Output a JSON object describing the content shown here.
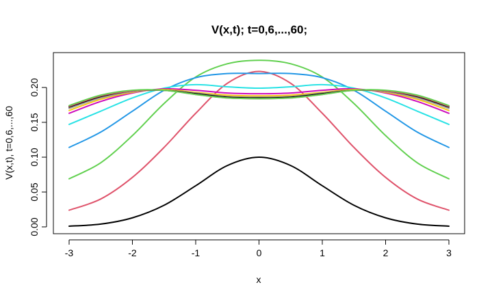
{
  "chart_data": {
    "type": "line",
    "title": "V(x,t); t=0,6,...,60;",
    "xlabel": "x",
    "ylabel": "V(x,t), t=0,6,...,60",
    "xlim": [
      -3,
      3
    ],
    "ylim": [
      0,
      0.24
    ],
    "xticks": [
      -3,
      -2,
      -1,
      0,
      1,
      2,
      3
    ],
    "xtick_labels": [
      "-3",
      "-2",
      "-1",
      "0",
      "1",
      "2",
      "3"
    ],
    "yticks": [
      0.0,
      0.05,
      0.1,
      0.15,
      0.2
    ],
    "ytick_labels": [
      "0.00",
      "0.05",
      "0.10",
      "0.15",
      "0.20"
    ],
    "grid": false,
    "legend": "none",
    "x": [
      -3.0,
      -2.5,
      -2.0,
      -1.5,
      -1.0,
      -0.5,
      0.0,
      0.5,
      1.0,
      1.5,
      2.0,
      2.5,
      3.0
    ],
    "series": [
      {
        "color": "#000000",
        "values": [
          0.001,
          0.004,
          0.013,
          0.031,
          0.059,
          0.088,
          0.1,
          0.088,
          0.059,
          0.031,
          0.013,
          0.004,
          0.001
        ]
      },
      {
        "color": "#DF536B",
        "values": [
          0.024,
          0.04,
          0.071,
          0.114,
          0.163,
          0.206,
          0.223,
          0.206,
          0.163,
          0.114,
          0.071,
          0.04,
          0.024
        ]
      },
      {
        "color": "#61D04F",
        "values": [
          0.069,
          0.092,
          0.131,
          0.177,
          0.215,
          0.234,
          0.239,
          0.234,
          0.215,
          0.177,
          0.131,
          0.092,
          0.069
        ]
      },
      {
        "color": "#2297E6",
        "values": [
          0.114,
          0.136,
          0.166,
          0.196,
          0.214,
          0.22,
          0.22,
          0.22,
          0.214,
          0.196,
          0.166,
          0.136,
          0.114
        ]
      },
      {
        "color": "#28E2E5",
        "values": [
          0.147,
          0.166,
          0.185,
          0.199,
          0.204,
          0.201,
          0.199,
          0.201,
          0.204,
          0.199,
          0.185,
          0.166,
          0.147
        ]
      },
      {
        "color": "#CD0BBC",
        "values": [
          0.163,
          0.18,
          0.192,
          0.198,
          0.196,
          0.192,
          0.191,
          0.192,
          0.196,
          0.198,
          0.192,
          0.18,
          0.163
        ]
      },
      {
        "color": "#F5C710",
        "values": [
          0.167,
          0.183,
          0.193,
          0.197,
          0.193,
          0.189,
          0.188,
          0.189,
          0.193,
          0.197,
          0.193,
          0.183,
          0.167
        ]
      },
      {
        "color": "#9E9E9E",
        "values": [
          0.17,
          0.185,
          0.194,
          0.196,
          0.192,
          0.187,
          0.186,
          0.187,
          0.192,
          0.196,
          0.194,
          0.185,
          0.17
        ]
      },
      {
        "color": "#000000",
        "values": [
          0.172,
          0.187,
          0.195,
          0.196,
          0.191,
          0.186,
          0.185,
          0.186,
          0.191,
          0.196,
          0.195,
          0.187,
          0.172
        ]
      },
      {
        "color": "#DF536B",
        "values": [
          0.173,
          0.188,
          0.195,
          0.196,
          0.19,
          0.185,
          0.184,
          0.185,
          0.19,
          0.196,
          0.195,
          0.188,
          0.173
        ]
      },
      {
        "color": "#61D04F",
        "values": [
          0.174,
          0.189,
          0.196,
          0.196,
          0.19,
          0.185,
          0.184,
          0.185,
          0.19,
          0.196,
          0.196,
          0.189,
          0.174
        ]
      }
    ]
  }
}
